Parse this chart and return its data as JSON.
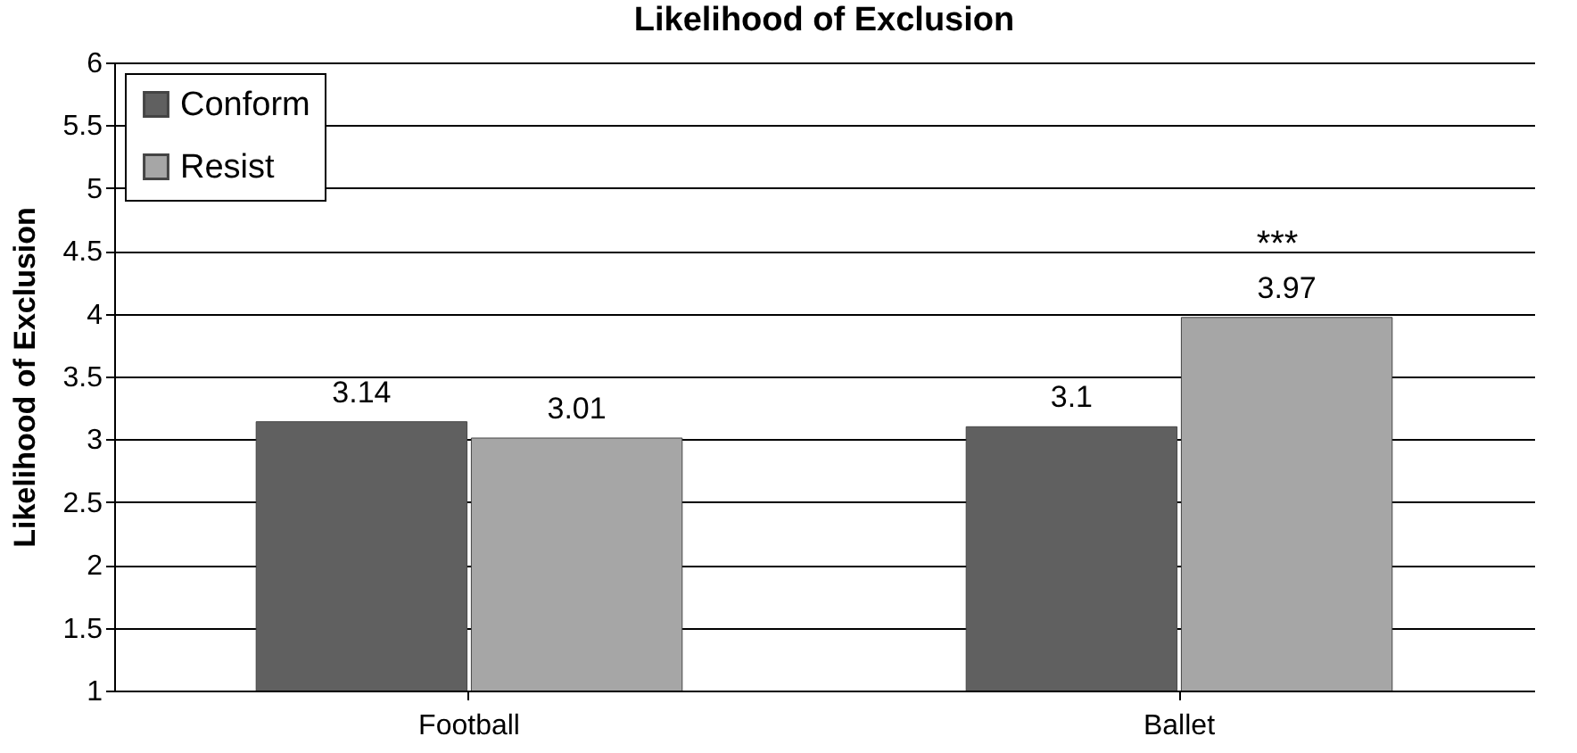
{
  "chart_data": {
    "type": "bar",
    "title": "Likelihood of Exclusion",
    "ylabel": "Likelihood of Exclusion",
    "categories": [
      "Football",
      "Ballet"
    ],
    "series": [
      {
        "name": "Conform",
        "color": "#606060",
        "values": [
          3.14,
          3.1
        ]
      },
      {
        "name": "Resist",
        "color": "#a6a6a6",
        "values": [
          3.01,
          3.97
        ]
      }
    ],
    "ylim": [
      1,
      6
    ],
    "yticks": [
      1,
      1.5,
      2,
      2.5,
      3,
      3.5,
      4,
      4.5,
      5,
      5.5,
      6
    ],
    "grid": "y",
    "legend": "top left",
    "data_labels": true,
    "annotations": [
      "***"
    ]
  }
}
